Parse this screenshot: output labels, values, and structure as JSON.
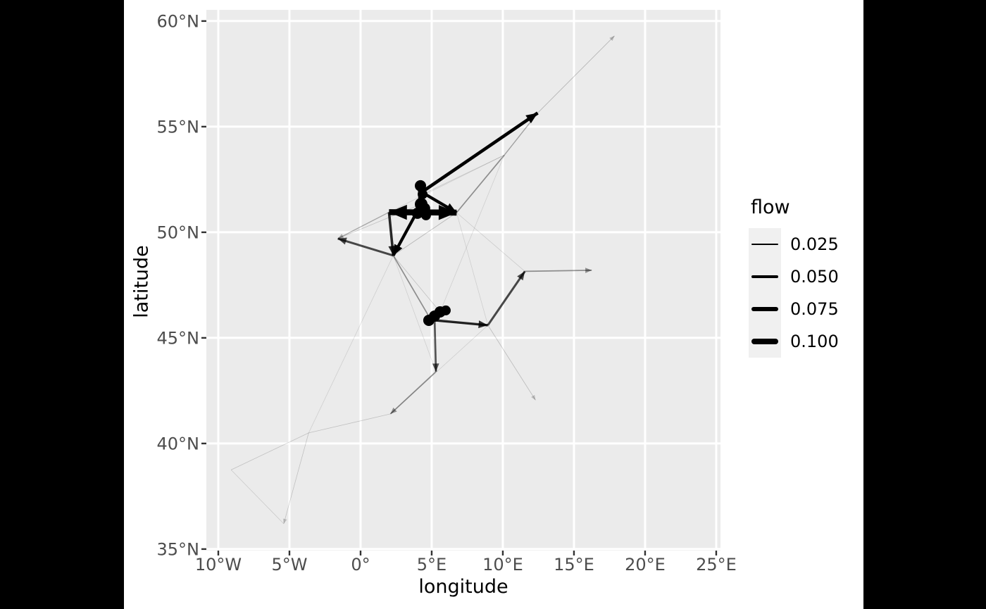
{
  "figure": {
    "letterbox_color": "#000000",
    "background": "#FFFFFF"
  },
  "chart_data": {
    "type": "line",
    "subtype": "flow-map-arrows",
    "title": "",
    "xlabel": "longitude",
    "ylabel": "latitude",
    "xlim": [
      -10.84,
      25.3
    ],
    "ylim": [
      34.93,
      60.53
    ],
    "grid": "on",
    "legend_position": "right",
    "colors": {
      "panel_bg": "#EBEBEB",
      "grid": "#FFFFFF",
      "tick_text": "#4D4D4D",
      "tick_mark": "#333333",
      "axis_title": "#000000",
      "flow_color": "#000000",
      "legend_key_bg": "#F0F0F0"
    },
    "x_ticks": [
      {
        "value": -10,
        "label": "10°W"
      },
      {
        "value": -5,
        "label": "5°W"
      },
      {
        "value": 0,
        "label": "0°"
      },
      {
        "value": 5,
        "label": "5°E"
      },
      {
        "value": 10,
        "label": "10°E"
      },
      {
        "value": 15,
        "label": "15°E"
      },
      {
        "value": 20,
        "label": "20°E"
      },
      {
        "value": 25,
        "label": "25°E"
      }
    ],
    "y_ticks": [
      {
        "value": 60,
        "label": "60°N"
      },
      {
        "value": 55,
        "label": "55°N"
      },
      {
        "value": 50,
        "label": "50°N"
      },
      {
        "value": 45,
        "label": "45°N"
      },
      {
        "value": 40,
        "label": "40°N"
      },
      {
        "value": 35,
        "label": "35°N"
      }
    ],
    "legend": {
      "title": "flow",
      "entries": [
        {
          "label": "0.025",
          "flow": 0.025
        },
        {
          "label": "0.050",
          "flow": 0.05
        },
        {
          "label": "0.075",
          "flow": 0.075
        },
        {
          "label": "0.100",
          "flow": 0.1
        }
      ]
    },
    "nodes": [
      {
        "lon": 4.21,
        "lat": 52.2,
        "r": 8
      },
      {
        "lon": 4.36,
        "lat": 51.8,
        "r": 7
      },
      {
        "lon": 4.26,
        "lat": 51.33,
        "r": 9
      },
      {
        "lon": 4.5,
        "lat": 51.13,
        "r": 8
      },
      {
        "lon": 4.0,
        "lat": 50.9,
        "r": 8
      },
      {
        "lon": 4.6,
        "lat": 50.8,
        "r": 7
      },
      {
        "lon": 4.8,
        "lat": 45.83,
        "r": 8
      },
      {
        "lon": 5.2,
        "lat": 46.03,
        "r": 8
      },
      {
        "lon": 5.59,
        "lat": 46.23,
        "r": 8
      },
      {
        "lon": 5.99,
        "lat": 46.3,
        "r": 7
      }
    ],
    "edges": [
      {
        "from": [
          2.0,
          50.95
        ],
        "to": [
          6.75,
          50.93
        ],
        "flow": 0.1,
        "arrow": "both"
      },
      {
        "from": [
          4.3,
          51.9
        ],
        "to": [
          12.45,
          55.65
        ],
        "flow": 0.055,
        "arrow": "end"
      },
      {
        "from": [
          4.3,
          51.9
        ],
        "to": [
          6.75,
          50.93
        ],
        "flow": 0.05,
        "arrow": "end"
      },
      {
        "from": [
          4.26,
          51.33
        ],
        "to": [
          2.3,
          48.9
        ],
        "flow": 0.05,
        "arrow": "end"
      },
      {
        "from": [
          2.0,
          50.95
        ],
        "to": [
          2.3,
          48.9
        ],
        "flow": 0.042,
        "arrow": "end"
      },
      {
        "from": [
          2.3,
          48.9
        ],
        "to": [
          -1.6,
          49.7
        ],
        "flow": 0.035,
        "arrow": "end"
      },
      {
        "from": [
          2.0,
          50.95
        ],
        "to": [
          -1.6,
          49.7
        ],
        "flow": 0.015,
        "arrow": "end"
      },
      {
        "from": [
          -1.6,
          49.7
        ],
        "to": [
          4.26,
          51.33
        ],
        "flow": 0.009,
        "arrow": "none"
      },
      {
        "from": [
          2.3,
          48.9
        ],
        "to": [
          6.75,
          50.93
        ],
        "flow": 0.011,
        "arrow": "none"
      },
      {
        "from": [
          6.75,
          50.93
        ],
        "to": [
          10.1,
          53.65
        ],
        "flow": 0.02,
        "arrow": "none"
      },
      {
        "from": [
          10.1,
          53.65
        ],
        "to": [
          12.45,
          55.65
        ],
        "flow": 0.016,
        "arrow": "none"
      },
      {
        "from": [
          12.45,
          55.65
        ],
        "to": [
          17.85,
          59.3
        ],
        "flow": 0.011,
        "arrow": "end"
      },
      {
        "from": [
          4.36,
          51.8
        ],
        "to": [
          10.1,
          53.65
        ],
        "flow": 0.008,
        "arrow": "none"
      },
      {
        "from": [
          2.0,
          50.95
        ],
        "to": [
          10.1,
          53.65
        ],
        "flow": 0.006,
        "arrow": "none"
      },
      {
        "from": [
          6.75,
          50.93
        ],
        "to": [
          11.55,
          48.15
        ],
        "flow": 0.007,
        "arrow": "none"
      },
      {
        "from": [
          6.75,
          50.93
        ],
        "to": [
          8.95,
          45.6
        ],
        "flow": 0.005,
        "arrow": "none"
      },
      {
        "from": [
          10.1,
          53.65
        ],
        "to": [
          5.59,
          46.23
        ],
        "flow": 0.005,
        "arrow": "none"
      },
      {
        "from": [
          4.95,
          45.85
        ],
        "to": [
          8.95,
          45.6
        ],
        "flow": 0.04,
        "arrow": "end"
      },
      {
        "from": [
          4.8,
          45.83
        ],
        "to": [
          8.95,
          45.6
        ],
        "flow": 0.02,
        "arrow": "none"
      },
      {
        "from": [
          8.95,
          45.6
        ],
        "to": [
          11.55,
          48.15
        ],
        "flow": 0.035,
        "arrow": "end"
      },
      {
        "from": [
          11.55,
          48.15
        ],
        "to": [
          16.25,
          48.2
        ],
        "flow": 0.02,
        "arrow": "end"
      },
      {
        "from": [
          5.2,
          46.0
        ],
        "to": [
          5.3,
          43.4
        ],
        "flow": 0.032,
        "arrow": "end"
      },
      {
        "from": [
          5.3,
          43.4
        ],
        "to": [
          2.1,
          41.4
        ],
        "flow": 0.02,
        "arrow": "end"
      },
      {
        "from": [
          2.3,
          48.9
        ],
        "to": [
          4.95,
          45.85
        ],
        "flow": 0.02,
        "arrow": "none"
      },
      {
        "from": [
          2.3,
          48.9
        ],
        "to": [
          5.59,
          46.23
        ],
        "flow": 0.009,
        "arrow": "none"
      },
      {
        "from": [
          2.3,
          48.9
        ],
        "to": [
          5.3,
          43.4
        ],
        "flow": 0.006,
        "arrow": "none"
      },
      {
        "from": [
          2.3,
          48.9
        ],
        "to": [
          -3.65,
          40.5
        ],
        "flow": 0.004,
        "arrow": "none"
      },
      {
        "from": [
          8.95,
          45.6
        ],
        "to": [
          12.3,
          42.05
        ],
        "flow": 0.01,
        "arrow": "end"
      },
      {
        "from": [
          8.95,
          45.6
        ],
        "to": [
          2.1,
          41.4
        ],
        "flow": 0.004,
        "arrow": "none"
      },
      {
        "from": [
          -3.65,
          40.5
        ],
        "to": [
          2.1,
          41.4
        ],
        "flow": 0.009,
        "arrow": "none"
      },
      {
        "from": [
          -9.1,
          38.75
        ],
        "to": [
          -3.65,
          40.5
        ],
        "flow": 0.009,
        "arrow": "none"
      },
      {
        "from": [
          -3.65,
          40.5
        ],
        "to": [
          -5.4,
          36.2
        ],
        "flow": 0.009,
        "arrow": "end"
      },
      {
        "from": [
          -9.1,
          38.75
        ],
        "to": [
          -5.4,
          36.2
        ],
        "flow": 0.007,
        "arrow": "none"
      },
      {
        "from": [
          4.21,
          52.2
        ],
        "to": [
          4.26,
          51.33
        ],
        "flow": 0.09,
        "arrow": "none"
      },
      {
        "from": [
          4.26,
          51.33
        ],
        "to": [
          4.6,
          50.8
        ],
        "flow": 0.09,
        "arrow": "none"
      },
      {
        "from": [
          4.8,
          45.83
        ],
        "to": [
          5.99,
          46.3
        ],
        "flow": 0.095,
        "arrow": "none"
      }
    ]
  }
}
